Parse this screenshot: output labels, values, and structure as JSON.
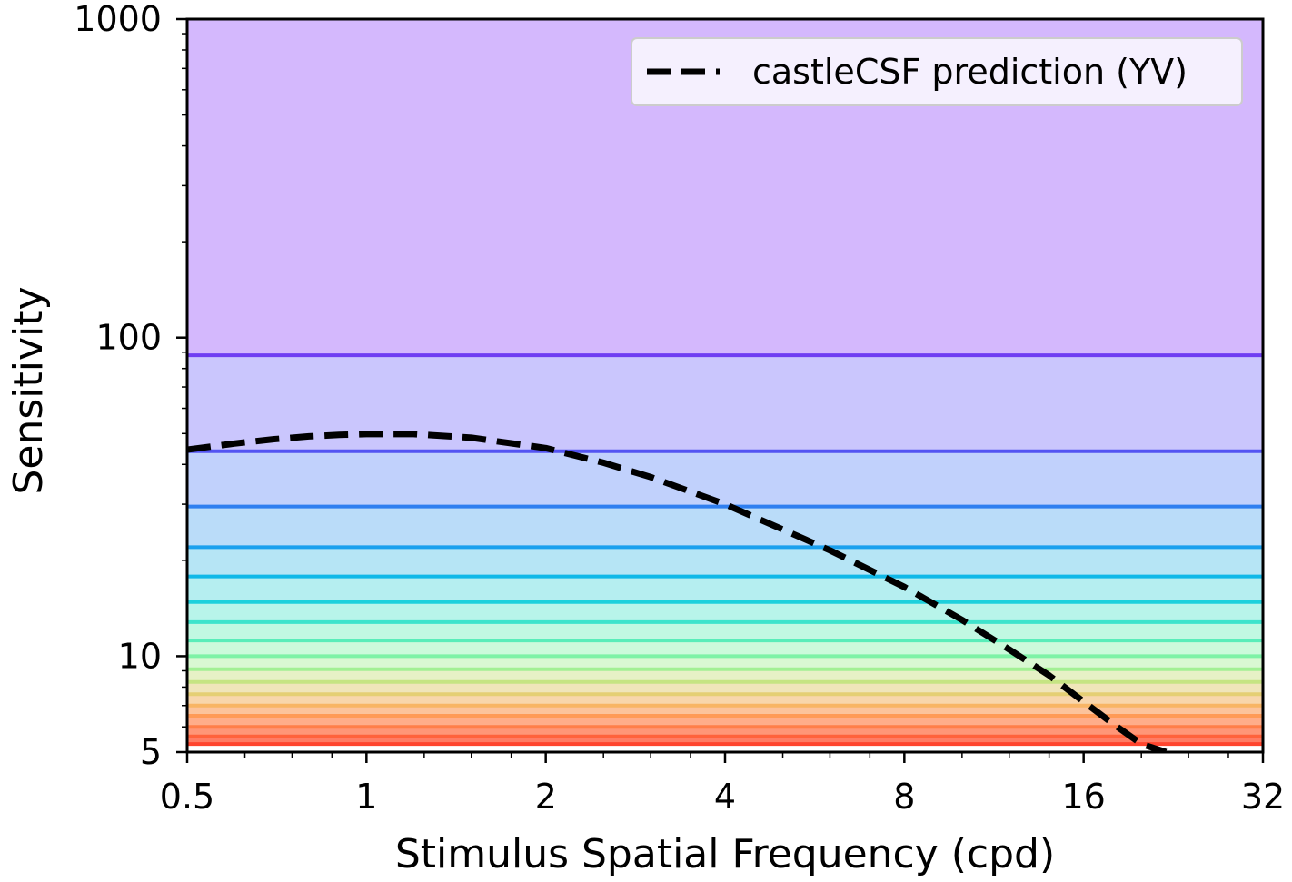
{
  "chart_data": {
    "type": "line",
    "title": "",
    "xlabel": "Stimulus Spatial Frequency (cpd)",
    "ylabel": "Sensitivity",
    "xscale": "log2",
    "yscale": "log10",
    "xlim": [
      0.5,
      32
    ],
    "ylim": [
      5,
      1000
    ],
    "x_ticks": [
      0.5,
      1,
      2,
      4,
      8,
      16,
      32
    ],
    "x_tick_labels": [
      "0.5",
      "1",
      "2",
      "4",
      "8",
      "16",
      "32"
    ],
    "y_ticks": [
      5,
      10,
      100,
      1000
    ],
    "y_tick_labels": [
      "5",
      "10",
      "100",
      "1000"
    ],
    "grid": false,
    "legend_position": "top-right",
    "background_bands": {
      "description_colors": [
        "#d4b8fd",
        "#cac6fd",
        "#c1d1fc",
        "#badcf9",
        "#b6e5f5",
        "#b5eef0",
        "#b8f4ea",
        "#c1f8e2",
        "#ccfadb",
        "#d9f8d2",
        "#e6f1c6",
        "#f0e5ba",
        "#f8d6ac",
        "#fcc39c",
        "#ffad8a",
        "#ff9677",
        "#ff7c64"
      ],
      "levels": [
        88,
        44,
        29.5,
        22,
        17.8,
        14.8,
        12.8,
        11.2,
        10,
        9.1,
        8.3,
        7.6,
        7.0,
        6.5,
        6.0,
        5.6,
        5.3
      ],
      "line_colors": [
        "#6f3df2",
        "#5454f2",
        "#2f7ff0",
        "#1aa0ee",
        "#10b8e8",
        "#1dd0dc",
        "#3ee3cc",
        "#59edb9",
        "#7ef2a6",
        "#a2f094",
        "#c6e483",
        "#e5cf74",
        "#f8b565",
        "#ff9a57",
        "#ff7e49",
        "#ff623b",
        "#ff452e"
      ]
    },
    "series": [
      {
        "name": "castleCSF prediction (YV)",
        "style": "dashed",
        "color": "#000000",
        "x": [
          0.5,
          0.6,
          0.7,
          0.8,
          0.9,
          1.0,
          1.2,
          1.5,
          2.0,
          2.5,
          3.0,
          4.0,
          5.0,
          6.0,
          8.0,
          10.0,
          12.0,
          14.0,
          16.0,
          18.0,
          20.0,
          22.0
        ],
        "y": [
          44.5,
          46.5,
          48,
          49,
          49.5,
          49.8,
          49.8,
          48.5,
          45,
          40.5,
          36.5,
          30,
          25,
          21.5,
          16.5,
          13,
          10.5,
          8.7,
          7.2,
          6.1,
          5.3,
          5.0
        ]
      }
    ]
  }
}
